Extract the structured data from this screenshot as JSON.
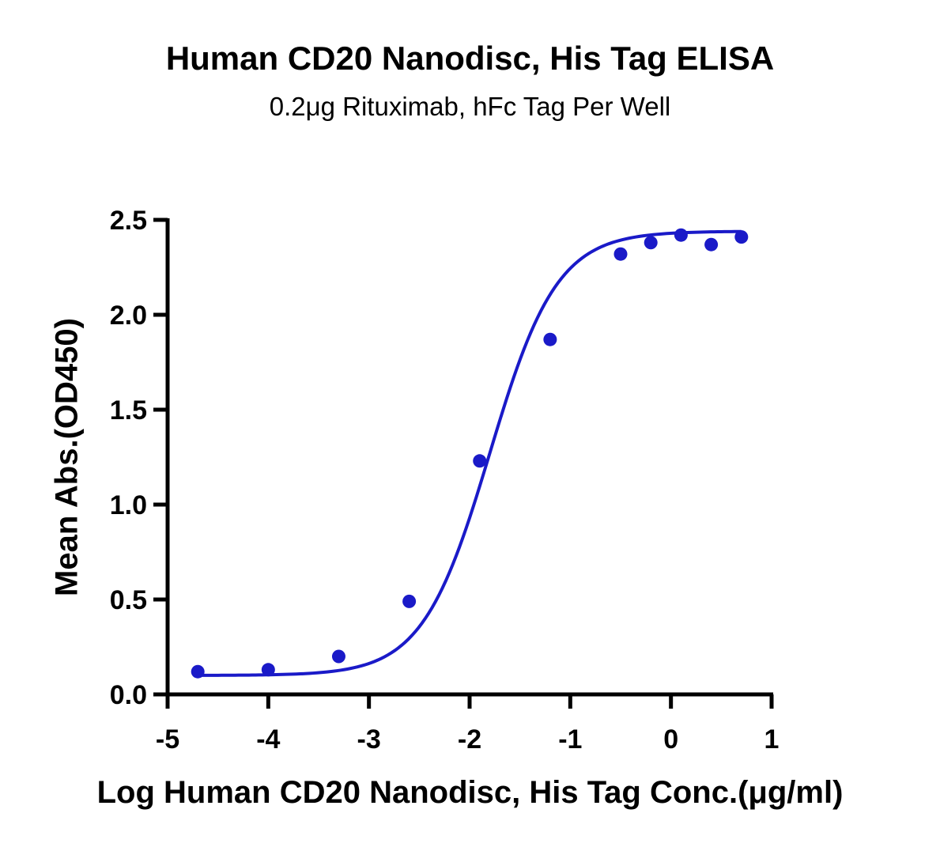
{
  "chart_data": {
    "type": "scatter",
    "title": "Human CD20 Nanodisc, His Tag ELISA",
    "subtitle": "0.2μg Rituximab, hFc Tag Per Well",
    "xlabel": "Log Human CD20 Nanodisc, His Tag Conc.(μg/ml)",
    "ylabel": "Mean Abs.(OD450)",
    "xlim": [
      -5,
      1
    ],
    "ylim": [
      0,
      2.5
    ],
    "xticks": [
      "-5",
      "-4",
      "-3",
      "-2",
      "-1",
      "0",
      "1"
    ],
    "yticks": [
      "0.0",
      "0.5",
      "1.0",
      "1.5",
      "2.0",
      "2.5"
    ],
    "grid": false,
    "series": [
      {
        "points": [
          {
            "x": -4.7,
            "y": 0.12
          },
          {
            "x": -4.0,
            "y": 0.13
          },
          {
            "x": -3.3,
            "y": 0.2
          },
          {
            "x": -2.6,
            "y": 0.49
          },
          {
            "x": -1.9,
            "y": 1.23
          },
          {
            "x": -1.2,
            "y": 1.87
          },
          {
            "x": -0.5,
            "y": 2.32
          },
          {
            "x": -0.2,
            "y": 2.38
          },
          {
            "x": 0.1,
            "y": 2.42
          },
          {
            "x": 0.4,
            "y": 2.37
          },
          {
            "x": 0.7,
            "y": 2.41
          }
        ],
        "fit": {
          "model": "4PL",
          "bottom": 0.1,
          "top": 2.44,
          "logEC50": -1.8,
          "hill": 1.3,
          "xrange": [
            -4.7,
            0.7
          ]
        }
      }
    ],
    "colors": {
      "series": "#1a1ac8",
      "axis": "#000000"
    }
  }
}
